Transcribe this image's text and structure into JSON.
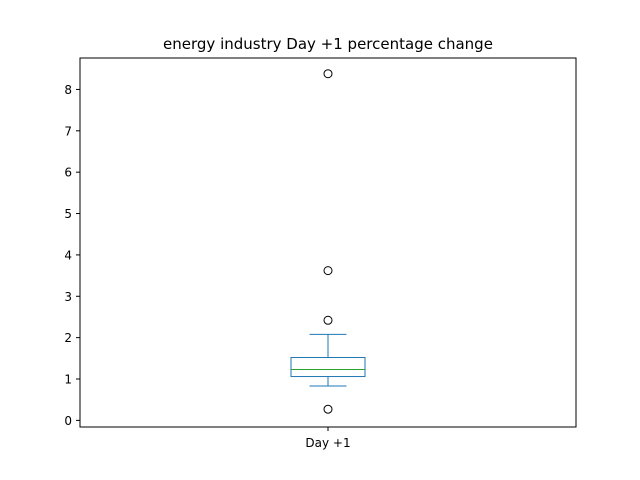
{
  "chart_data": {
    "type": "box",
    "title": "energy industry Day +1 percentage change",
    "categories": [
      "Day +1"
    ],
    "ylim": [
      -0.16,
      8.76
    ],
    "yticks": [
      0,
      1,
      2,
      3,
      4,
      5,
      6,
      7,
      8
    ],
    "grid": false,
    "boxes": [
      {
        "label": "Day +1",
        "whisker_low": 0.83,
        "q1": 1.06,
        "median": 1.23,
        "q3": 1.52,
        "whisker_high": 2.08,
        "outliers": [
          0.27,
          2.42,
          3.62,
          8.38
        ]
      }
    ],
    "colors": {
      "box": "#1f77b4",
      "median": "#2ca02c",
      "outlier": "#000000"
    }
  }
}
